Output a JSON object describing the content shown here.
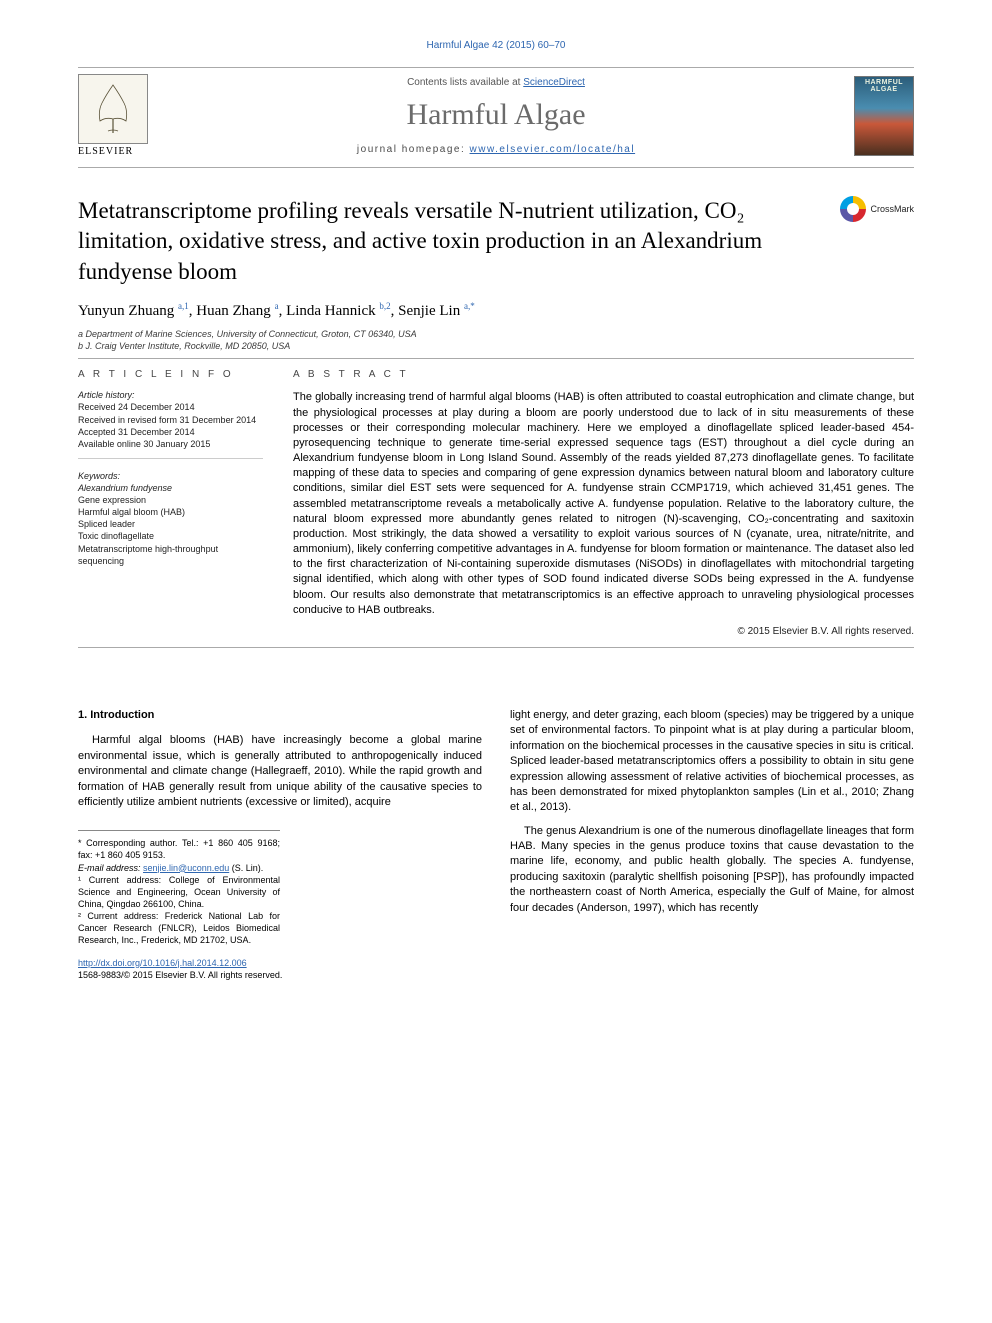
{
  "page_header_link": "Harmful Algae 42 (2015) 60–70",
  "banner": {
    "contents_line_pre": "Contents lists available at ",
    "contents_link": "ScienceDirect",
    "journal_name": "Harmful Algae",
    "homepage_label": "journal homepage: ",
    "homepage_url": "www.elsevier.com/locate/hal",
    "publisher_name": "ELSEVIER",
    "cover_title": "HARMFUL ALGAE"
  },
  "title": "Metatranscriptome profiling reveals versatile N-nutrient utilization, CO₂ limitation, oxidative stress, and active toxin production in an Alexandrium fundyense bloom",
  "crossmark_label": "CrossMark",
  "authors_html": "Yunyun Zhuang <sup class='aff'>a,1</sup>, Huan Zhang <sup class='aff'>a</sup>, Linda Hannick <sup class='aff'>b,2</sup>, Senjie Lin <sup class='aff'>a,*</sup>",
  "affiliations": [
    "a Department of Marine Sciences, University of Connecticut, Groton, CT 06340, USA",
    "b J. Craig Venter Institute, Rockville, MD 20850, USA"
  ],
  "article_info": {
    "heading": "A R T I C L E   I N F O",
    "history_head": "Article history:",
    "history": [
      "Received 24 December 2014",
      "Received in revised form 31 December 2014",
      "Accepted 31 December 2014",
      "Available online 30 January 2015"
    ],
    "keywords_head": "Keywords:",
    "keywords": [
      "Alexandrium fundyense",
      "Gene expression",
      "Harmful algal bloom (HAB)",
      "Spliced leader",
      "Toxic dinoflagellate",
      "Metatranscriptome high-throughput sequencing"
    ]
  },
  "abstract": {
    "heading": "A B S T R A C T",
    "body": "The globally increasing trend of harmful algal blooms (HAB) is often attributed to coastal eutrophication and climate change, but the physiological processes at play during a bloom are poorly understood due to lack of in situ measurements of these processes or their corresponding molecular machinery. Here we employed a dinoflagellate spliced leader-based 454-pyrosequencing technique to generate time-serial expressed sequence tags (EST) throughout a diel cycle during an Alexandrium fundyense bloom in Long Island Sound. Assembly of the reads yielded 87,273 dinoflagellate genes. To facilitate mapping of these data to species and comparing of gene expression dynamics between natural bloom and laboratory culture conditions, similar diel EST sets were sequenced for A. fundyense strain CCMP1719, which achieved 31,451 genes. The assembled metatranscriptome reveals a metabolically active A. fundyense population. Relative to the laboratory culture, the natural bloom expressed more abundantly genes related to nitrogen (N)-scavenging, CO₂-concentrating and saxitoxin production. Most strikingly, the data showed a versatility to exploit various sources of N (cyanate, urea, nitrate/nitrite, and ammonium), likely conferring competitive advantages in A. fundyense for bloom formation or maintenance. The dataset also led to the first characterization of Ni-containing superoxide dismutases (NiSODs) in dinoflagellates with mitochondrial targeting signal identified, which along with other types of SOD found indicated diverse SODs being expressed in the A. fundyense bloom. Our results also demonstrate that metatranscriptomics is an effective approach to unraveling physiological processes conducive to HAB outbreaks.",
    "copyright": "© 2015 Elsevier B.V. All rights reserved."
  },
  "body": {
    "section_no": "1.",
    "section_title": "Introduction",
    "left_p1": "Harmful algal blooms (HAB) have increasingly become a global marine environmental issue, which is generally attributed to anthropogenically induced environmental and climate change (Hallegraeff, 2010). While the rapid growth and formation of HAB generally result from unique ability of the causative species to efficiently utilize ambient nutrients (excessive or limited), acquire",
    "right_p1": "light energy, and deter grazing, each bloom (species) may be triggered by a unique set of environmental factors. To pinpoint what is at play during a particular bloom, information on the biochemical processes in the causative species in situ is critical. Spliced leader-based metatranscriptomics offers a possibility to obtain in situ gene expression allowing assessment of relative activities of biochemical processes, as has been demonstrated for mixed phytoplankton samples (Lin et al., 2010; Zhang et al., 2013).",
    "right_p2": "The genus Alexandrium is one of the numerous dinoflagellate lineages that form HAB. Many species in the genus produce toxins that cause devastation to the marine life, economy, and public health globally. The species A. fundyense, producing saxitoxin (paralytic shellfish poisoning [PSP]), has profoundly impacted the northeastern coast of North America, especially the Gulf of Maine, for almost four decades (Anderson, 1997), which has recently"
  },
  "footnotes": {
    "corr": "* Corresponding author. Tel.: +1 860 405 9168; fax: +1 860 405 9153.",
    "email_label": "E-mail address: ",
    "email": "senjie.lin@uconn.edu",
    "email_post": " (S. Lin).",
    "n1": "¹ Current address: College of Environmental Science and Engineering, Ocean University of China, Qingdao 266100, China.",
    "n2": "² Current address: Frederick National Lab for Cancer Research (FNLCR), Leidos Biomedical Research, Inc., Frederick, MD 21702, USA."
  },
  "doi": {
    "url": "http://dx.doi.org/10.1016/j.hal.2014.12.006",
    "issn_line": "1568-9883/© 2015 Elsevier B.V. All rights reserved."
  },
  "colors": {
    "link": "#2e66b0",
    "rule": "#aaaaaa",
    "text": "#000000"
  }
}
